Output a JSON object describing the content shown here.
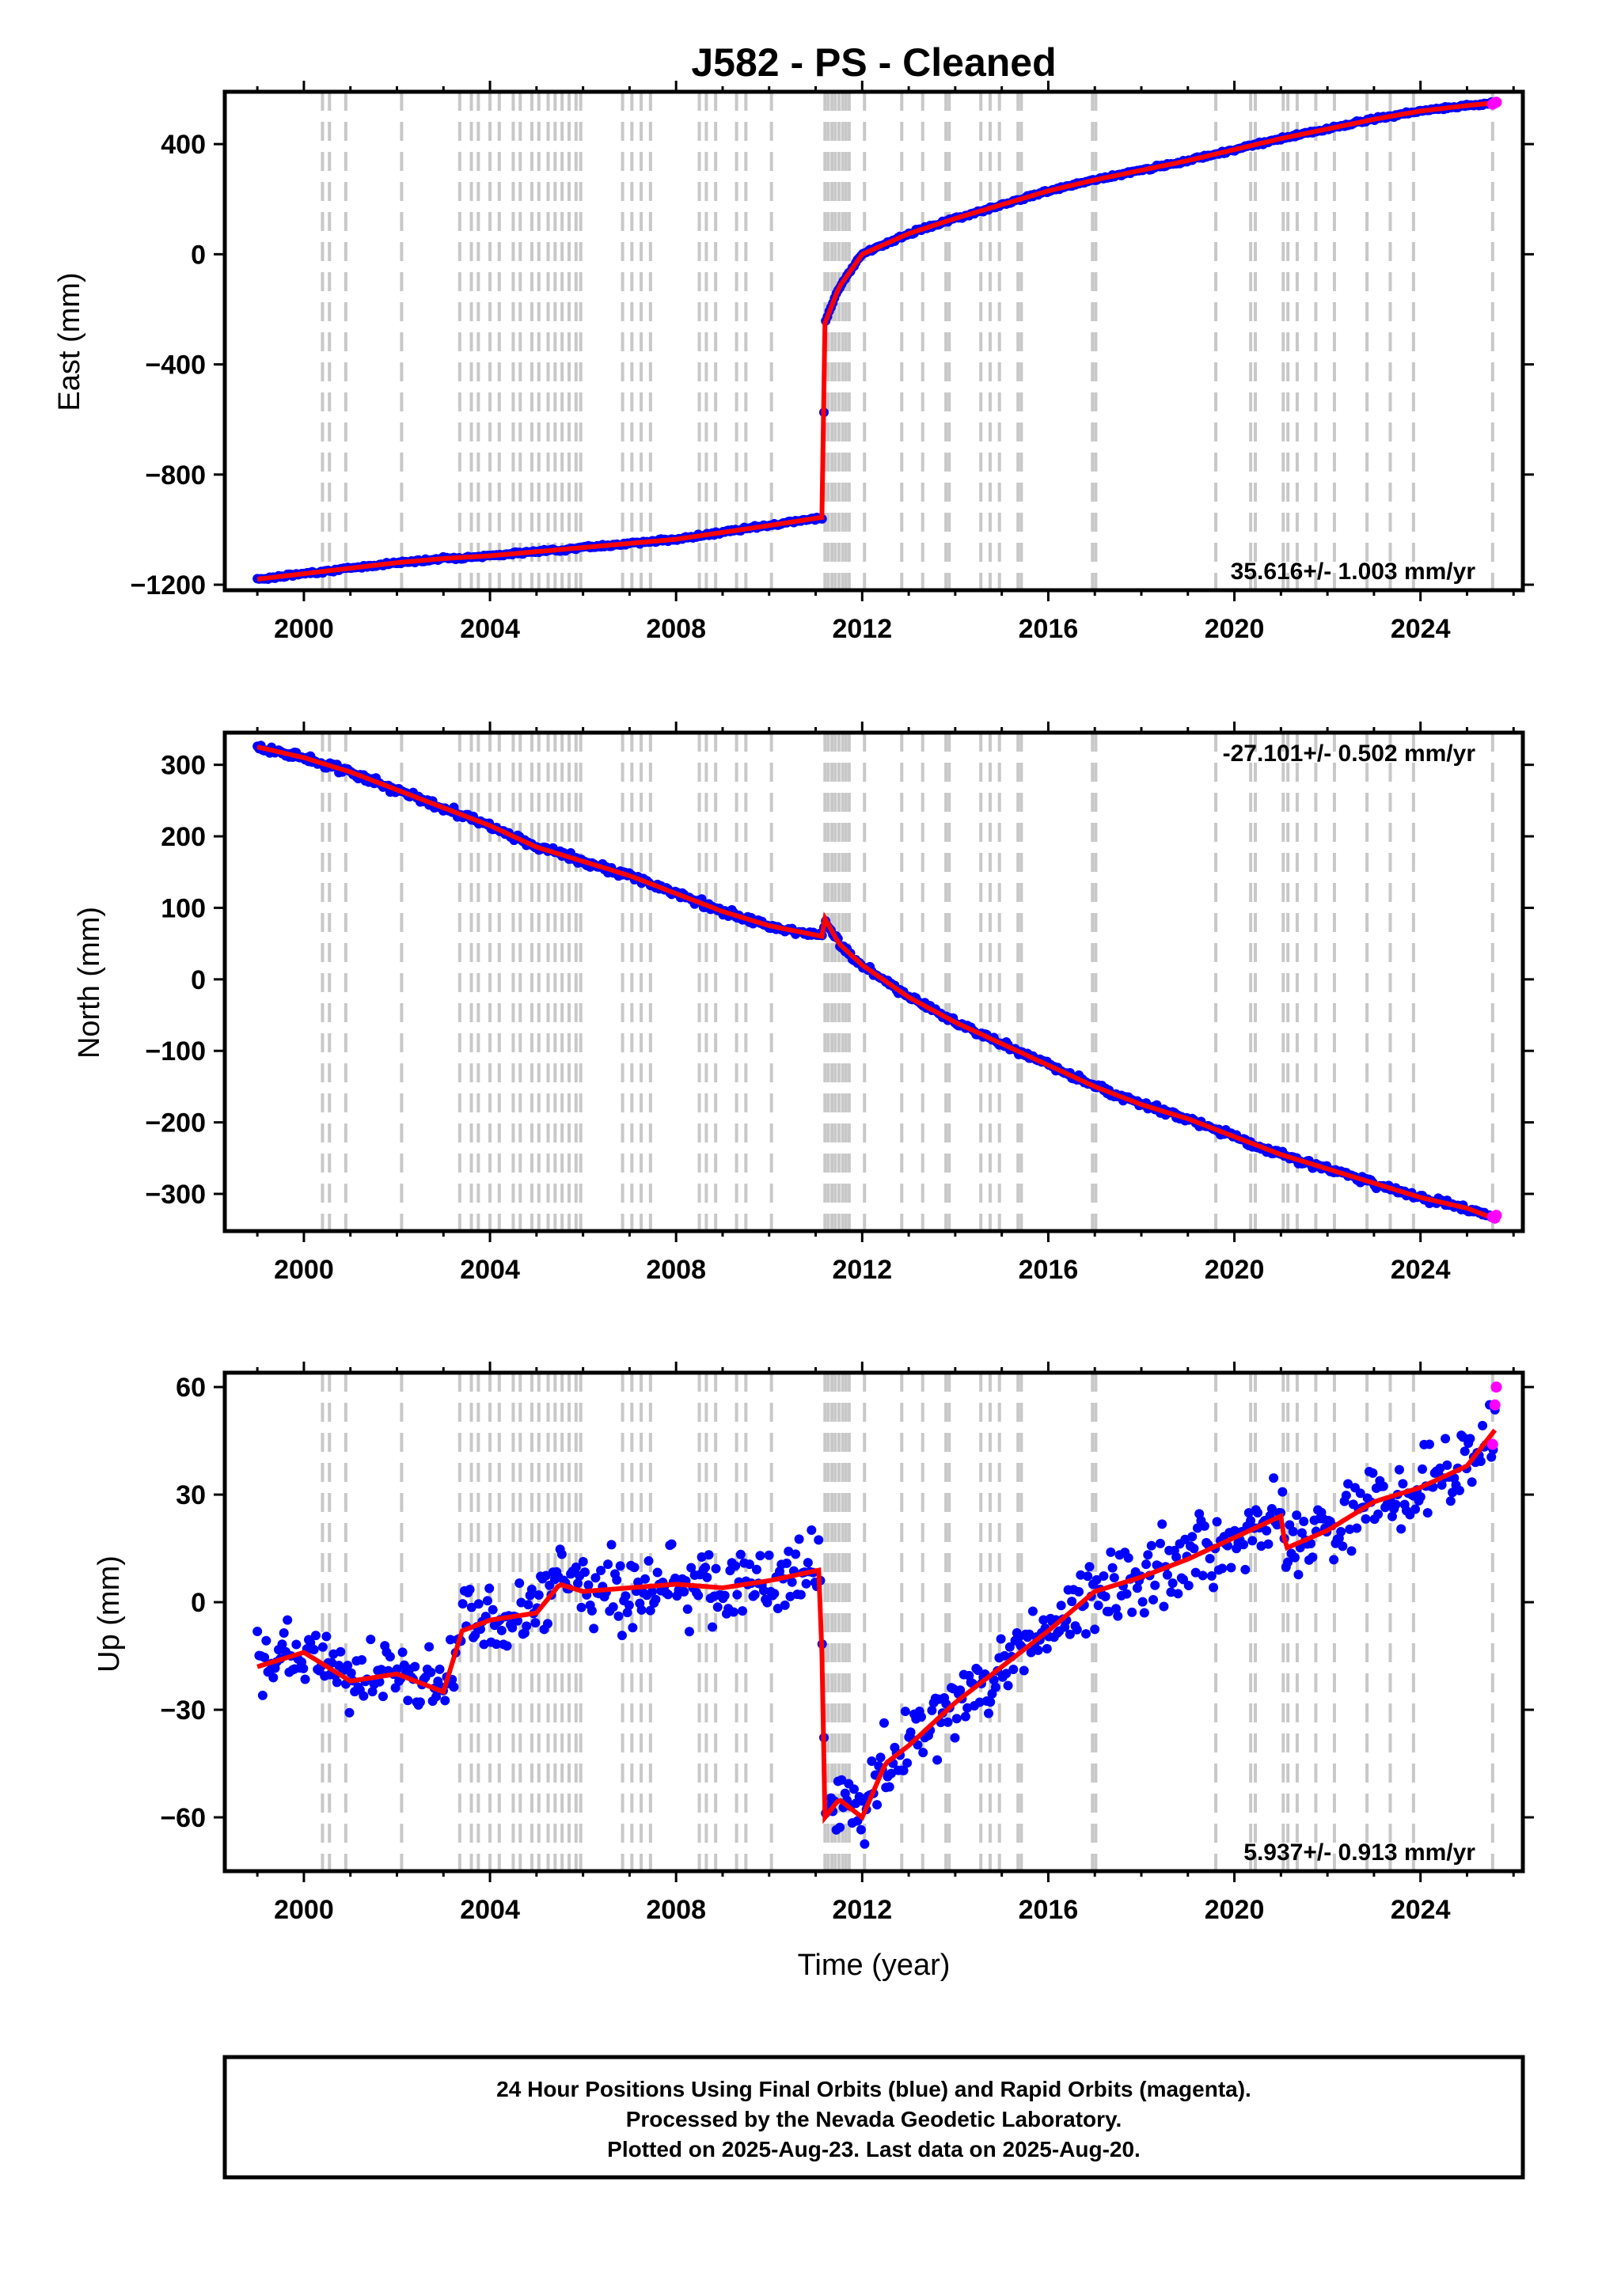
{
  "title": "J582  - PS - Cleaned",
  "footer": {
    "line1": "24 Hour Positions Using Final Orbits (blue) and Rapid Orbits (magenta).",
    "line2": "Processed by the Nevada Geodetic Laboratory.",
    "line3": "Plotted on 2025-Aug-23. Last data on 2025-Aug-20."
  },
  "colors": {
    "final_orbits": "#0000ff",
    "rapid_orbits": "#ff00ff",
    "model": "#ff0000",
    "steps": "#c8c8c8"
  },
  "chart_data": [
    {
      "type": "scatter",
      "name": "east",
      "ylabel": "East (mm)",
      "xlim": [
        1998.3,
        2026.2
      ],
      "ylim": [
        -1220,
        590
      ],
      "yticks": [
        400,
        0,
        -400,
        -800,
        -1200
      ],
      "ytick_labels": [
        "400",
        "0",
        "−400",
        "−800",
        "−1200"
      ],
      "xticks": [
        2000,
        2004,
        2008,
        2012,
        2016,
        2020,
        2024
      ],
      "xtick_labels": [
        "2000",
        "2004",
        "2008",
        "2012",
        "2016",
        "2020",
        "2024"
      ],
      "rate_label": "35.616+/- 1.003 mm/yr",
      "rate_position": "bottom-right",
      "series": [
        {
          "name": "final",
          "x": [
            1999.0,
            2000.0,
            2001.0,
            2002.0,
            2003.0,
            2004.0,
            2005.0,
            2006.0,
            2007.0,
            2008.0,
            2009.0,
            2010.0,
            2011.15,
            2011.2,
            2011.5,
            2012.0,
            2013.0,
            2014.0,
            2015.0,
            2016.0,
            2017.0,
            2018.0,
            2019.0,
            2020.0,
            2021.0,
            2022.0,
            2023.0,
            2024.0,
            2025.0,
            2025.6
          ],
          "y": [
            -1180,
            -1160,
            -1140,
            -1120,
            -1105,
            -1095,
            -1080,
            -1065,
            -1050,
            -1035,
            -1010,
            -985,
            -955,
            -250,
            -120,
            0,
            75,
            130,
            180,
            230,
            270,
            305,
            340,
            380,
            420,
            455,
            490,
            520,
            540,
            550
          ]
        },
        {
          "name": "rapid",
          "x": [
            2025.55,
            2025.6,
            2025.63
          ],
          "y": [
            545,
            550,
            552
          ]
        }
      ]
    },
    {
      "type": "scatter",
      "name": "north",
      "ylabel": "North (mm)",
      "xlim": [
        1998.3,
        2026.2
      ],
      "ylim": [
        -352,
        345
      ],
      "yticks": [
        300,
        200,
        100,
        0,
        -100,
        -200,
        -300
      ],
      "ytick_labels": [
        "300",
        "200",
        "100",
        "0",
        "−100",
        "−200",
        "−300"
      ],
      "xticks": [
        2000,
        2004,
        2008,
        2012,
        2016,
        2020,
        2024
      ],
      "xtick_labels": [
        "2000",
        "2004",
        "2008",
        "2012",
        "2016",
        "2020",
        "2024"
      ],
      "rate_label": "-27.101+/- 0.502 mm/yr",
      "rate_position": "top-right",
      "series": [
        {
          "name": "final",
          "x": [
            1999.0,
            2000.0,
            2001.0,
            2002.0,
            2003.0,
            2004.0,
            2005.0,
            2006.0,
            2007.0,
            2008.0,
            2009.0,
            2010.0,
            2011.15,
            2011.2,
            2011.5,
            2012.0,
            2013.0,
            2014.0,
            2015.0,
            2016.0,
            2017.0,
            2018.0,
            2019.0,
            2020.0,
            2021.0,
            2022.0,
            2023.0,
            2024.0,
            2025.0,
            2025.6
          ],
          "y": [
            325,
            310,
            290,
            265,
            240,
            215,
            185,
            165,
            145,
            120,
            95,
            75,
            60,
            85,
            50,
            20,
            -25,
            -60,
            -90,
            -120,
            -150,
            -175,
            -195,
            -220,
            -245,
            -265,
            -285,
            -305,
            -320,
            -335
          ]
        },
        {
          "name": "rapid",
          "x": [
            2025.55,
            2025.6,
            2025.63
          ],
          "y": [
            -332,
            -334,
            -330
          ]
        }
      ]
    },
    {
      "type": "scatter",
      "name": "up",
      "ylabel": "Up (mm)",
      "xlabel": "Time (year)",
      "xlim": [
        1998.3,
        2026.2
      ],
      "ylim": [
        -75,
        64
      ],
      "yticks": [
        60,
        30,
        0,
        -30,
        -60
      ],
      "ytick_labels": [
        "60",
        "30",
        "0",
        "−30",
        "−60"
      ],
      "xticks": [
        2000,
        2004,
        2008,
        2012,
        2016,
        2020,
        2024
      ],
      "xtick_labels": [
        "2000",
        "2004",
        "2008",
        "2012",
        "2016",
        "2020",
        "2024"
      ],
      "rate_label": "5.937+/- 0.913 mm/yr",
      "rate_position": "bottom-right",
      "series": [
        {
          "name": "final",
          "x": [
            1999.0,
            2000.0,
            2001.0,
            2002.0,
            2003.0,
            2003.4,
            2004.0,
            2005.0,
            2005.5,
            2006.0,
            2007.0,
            2008.0,
            2009.0,
            2010.0,
            2011.1,
            2011.2,
            2011.5,
            2012.0,
            2012.5,
            2013.0,
            2014.0,
            2015.0,
            2016.0,
            2017.0,
            2018.0,
            2019.0,
            2020.0,
            2021.0,
            2021.1,
            2022.0,
            2023.0,
            2024.0,
            2025.0,
            2025.6
          ],
          "y": [
            -18,
            -14,
            -22,
            -20,
            -25,
            -8,
            -5,
            -3,
            5,
            3,
            4,
            5,
            4,
            6,
            9,
            -60,
            -55,
            -60,
            -45,
            -40,
            -28,
            -18,
            -8,
            3,
            7,
            12,
            18,
            24,
            15,
            20,
            28,
            32,
            38,
            48
          ]
        },
        {
          "name": "rapid",
          "x": [
            2025.55,
            2025.6,
            2025.63
          ],
          "y": [
            44,
            55,
            60
          ]
        }
      ]
    }
  ],
  "steps": [
    2000.4,
    2000.55,
    2000.9,
    2002.1,
    2003.35,
    2003.6,
    2003.75,
    2004.0,
    2004.2,
    2004.5,
    2004.65,
    2004.9,
    2005.05,
    2005.25,
    2005.4,
    2005.55,
    2005.7,
    2005.85,
    2005.95,
    2006.85,
    2007.05,
    2007.25,
    2007.45,
    2008.5,
    2008.65,
    2008.85,
    2009.3,
    2009.5,
    2010.05,
    2011.2,
    2011.27,
    2011.35,
    2011.42,
    2011.5,
    2011.58,
    2011.65,
    2011.72,
    2012.05,
    2012.85,
    2013.3,
    2013.8,
    2013.87,
    2014.55,
    2014.75,
    2014.95,
    2015.35,
    2015.42,
    2016.95,
    2017.02,
    2019.6,
    2020.35,
    2020.45,
    2021.05,
    2021.15,
    2021.35,
    2021.75,
    2022.15,
    2022.85,
    2023.35,
    2023.85,
    2025.55
  ]
}
